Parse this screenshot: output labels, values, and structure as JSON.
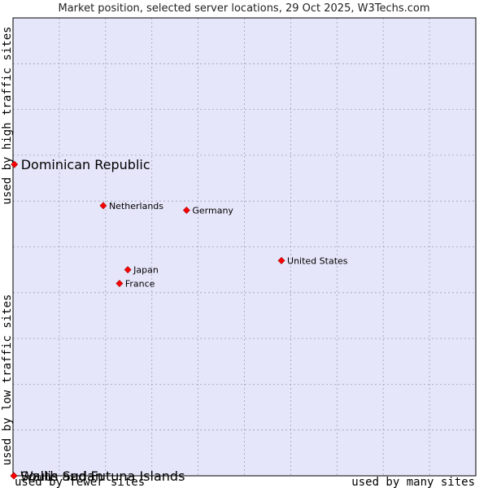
{
  "chart_data": {
    "type": "scatter",
    "title": "Market position, selected server locations, 29 Oct 2025, W3Techs.com",
    "xlabel_low": "used by fewer sites",
    "xlabel_high": "used by many sites",
    "ylabel_low": "used by low traffic sites",
    "ylabel_high": "used by high traffic sites",
    "xlim": [
      0,
      10
    ],
    "ylim": [
      0,
      10
    ],
    "grid": true,
    "colors": {
      "plot_bg": "#e6e6fa",
      "grid": "#a0a0b8",
      "marker": "#ff0000",
      "marker_edge": "#990000"
    },
    "points": [
      {
        "name": "Dominican Republic",
        "x": 0.03,
        "y": 6.8,
        "size": "large"
      },
      {
        "name": "Netherlands",
        "x": 1.95,
        "y": 5.9,
        "size": "small"
      },
      {
        "name": "Germany",
        "x": 3.75,
        "y": 5.8,
        "size": "small"
      },
      {
        "name": "United States",
        "x": 5.8,
        "y": 4.7,
        "size": "small"
      },
      {
        "name": "Japan",
        "x": 2.48,
        "y": 4.5,
        "size": "small"
      },
      {
        "name": "France",
        "x": 2.3,
        "y": 4.2,
        "size": "small"
      },
      {
        "name": "South Sudan",
        "x": 0.0,
        "y": 0.0,
        "size": "large"
      },
      {
        "name": "Wallis and Futuna Islands",
        "x": 0.0,
        "y": 0.0,
        "size": "large"
      }
    ]
  }
}
